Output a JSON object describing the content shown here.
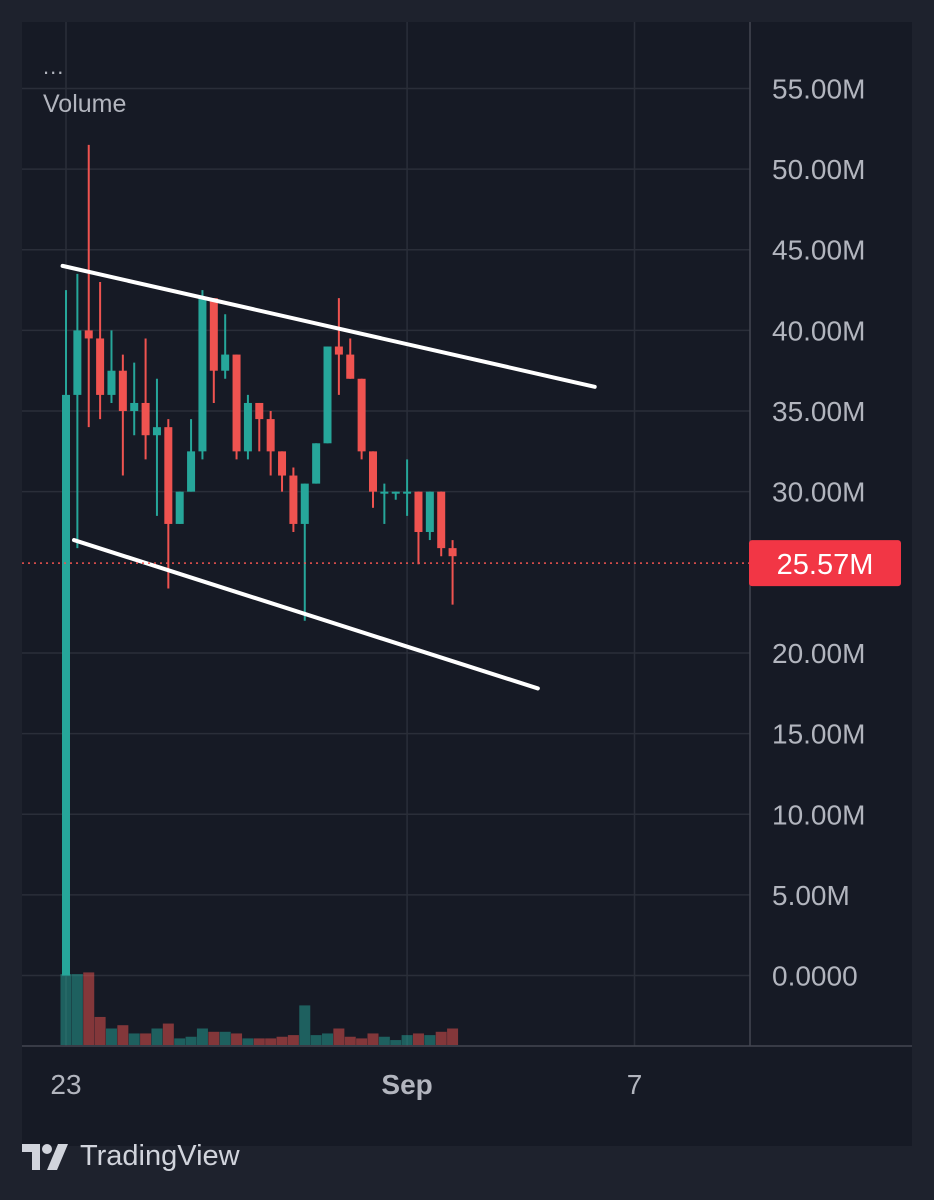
{
  "legend": {
    "menu": "...",
    "title": "Volume"
  },
  "brand": {
    "name": "TradingView"
  },
  "colors": {
    "up": "#26a69a",
    "down": "#ef5350",
    "grid": "#2a2e39",
    "axis_text": "#b2b5be",
    "price_line": "#ef5350",
    "price_badge": "#f23645",
    "trend": "#ffffff"
  },
  "chart_data": {
    "type": "candlestick",
    "title": "",
    "xlabel": "",
    "ylabel": "",
    "y_axis": {
      "ticks": [
        "55.00M",
        "50.00M",
        "45.00M",
        "40.00M",
        "35.00M",
        "30.00M",
        "20.00M",
        "15.00M",
        "10.00M",
        "5.00M",
        "0.0000"
      ],
      "tick_values": [
        55,
        50,
        45,
        40,
        35,
        30,
        20,
        15,
        10,
        5,
        0
      ],
      "unit_scale": "M",
      "range": [
        -3.5,
        58.5
      ]
    },
    "x_axis": {
      "ticks": [
        {
          "label": "23",
          "index": 0,
          "bold": false
        },
        {
          "label": "Sep",
          "index": 30,
          "bold": true
        },
        {
          "label": "7",
          "index": 50,
          "bold": false
        }
      ]
    },
    "last_price": {
      "value": 25.57,
      "label": "25.57M"
    },
    "candles": [
      {
        "o": 0.0,
        "h": 42.5,
        "l": 0.0,
        "c": 36.0,
        "v": 4.3
      },
      {
        "o": 36.0,
        "h": 43.5,
        "l": 26.5,
        "c": 40.0,
        "v": 4.3
      },
      {
        "o": 40.0,
        "h": 51.5,
        "l": 34.0,
        "c": 39.5,
        "v": 4.4
      },
      {
        "o": 39.5,
        "h": 43.0,
        "l": 34.5,
        "c": 36.0,
        "v": 1.7
      },
      {
        "o": 36.0,
        "h": 40.0,
        "l": 35.5,
        "c": 37.5,
        "v": 1.0
      },
      {
        "o": 37.5,
        "h": 38.5,
        "l": 31.0,
        "c": 35.0,
        "v": 1.2
      },
      {
        "o": 35.0,
        "h": 38.0,
        "l": 33.5,
        "c": 35.5,
        "v": 0.7
      },
      {
        "o": 35.5,
        "h": 39.5,
        "l": 32.0,
        "c": 33.5,
        "v": 0.7
      },
      {
        "o": 33.5,
        "h": 37.0,
        "l": 28.5,
        "c": 34.0,
        "v": 1.0
      },
      {
        "o": 34.0,
        "h": 34.5,
        "l": 24.0,
        "c": 28.0,
        "v": 1.3
      },
      {
        "o": 28.0,
        "h": 30.0,
        "l": 28.0,
        "c": 30.0,
        "v": 0.4
      },
      {
        "o": 30.0,
        "h": 34.5,
        "l": 30.0,
        "c": 32.5,
        "v": 0.5
      },
      {
        "o": 32.5,
        "h": 42.5,
        "l": 32.0,
        "c": 42.0,
        "v": 1.0
      },
      {
        "o": 42.0,
        "h": 42.0,
        "l": 35.5,
        "c": 37.5,
        "v": 0.8
      },
      {
        "o": 37.5,
        "h": 41.0,
        "l": 37.0,
        "c": 38.5,
        "v": 0.8
      },
      {
        "o": 38.5,
        "h": 38.5,
        "l": 32.0,
        "c": 32.5,
        "v": 0.7
      },
      {
        "o": 32.5,
        "h": 36.0,
        "l": 32.0,
        "c": 35.5,
        "v": 0.4
      },
      {
        "o": 35.5,
        "h": 35.5,
        "l": 32.5,
        "c": 34.5,
        "v": 0.4
      },
      {
        "o": 34.5,
        "h": 35.0,
        "l": 31.0,
        "c": 32.5,
        "v": 0.4
      },
      {
        "o": 32.5,
        "h": 32.5,
        "l": 30.0,
        "c": 31.0,
        "v": 0.5
      },
      {
        "o": 31.0,
        "h": 31.5,
        "l": 27.5,
        "c": 28.0,
        "v": 0.6
      },
      {
        "o": 28.0,
        "h": 30.5,
        "l": 22.0,
        "c": 30.5,
        "v": 2.4
      },
      {
        "o": 30.5,
        "h": 33.0,
        "l": 30.5,
        "c": 33.0,
        "v": 0.6
      },
      {
        "o": 33.0,
        "h": 39.0,
        "l": 33.0,
        "c": 39.0,
        "v": 0.7
      },
      {
        "o": 39.0,
        "h": 42.0,
        "l": 36.0,
        "c": 38.5,
        "v": 1.0
      },
      {
        "o": 38.5,
        "h": 39.5,
        "l": 37.0,
        "c": 37.0,
        "v": 0.5
      },
      {
        "o": 37.0,
        "h": 37.0,
        "l": 32.0,
        "c": 32.5,
        "v": 0.4
      },
      {
        "o": 32.5,
        "h": 32.5,
        "l": 29.0,
        "c": 30.0,
        "v": 0.7
      },
      {
        "o": 30.0,
        "h": 30.5,
        "l": 28.0,
        "c": 30.0,
        "v": 0.5
      },
      {
        "o": 30.0,
        "h": 30.0,
        "l": 29.5,
        "c": 30.0,
        "v": 0.3
      },
      {
        "o": 30.0,
        "h": 32.0,
        "l": 28.5,
        "c": 30.0,
        "v": 0.6
      },
      {
        "o": 30.0,
        "h": 30.0,
        "l": 25.5,
        "c": 27.5,
        "v": 0.7
      },
      {
        "o": 27.5,
        "h": 30.0,
        "l": 27.0,
        "c": 30.0,
        "v": 0.6
      },
      {
        "o": 30.0,
        "h": 30.0,
        "l": 26.0,
        "c": 26.5,
        "v": 0.8
      },
      {
        "o": 26.5,
        "h": 27.0,
        "l": 23.0,
        "c": 26.0,
        "v": 1.0
      }
    ],
    "trendlines": [
      {
        "name": "upper",
        "x1": -0.3,
        "y1": 44.0,
        "x2": 46.5,
        "y2": 36.5
      },
      {
        "name": "lower",
        "x1": 0.7,
        "y1": 27.0,
        "x2": 41.5,
        "y2": 17.8
      }
    ]
  }
}
